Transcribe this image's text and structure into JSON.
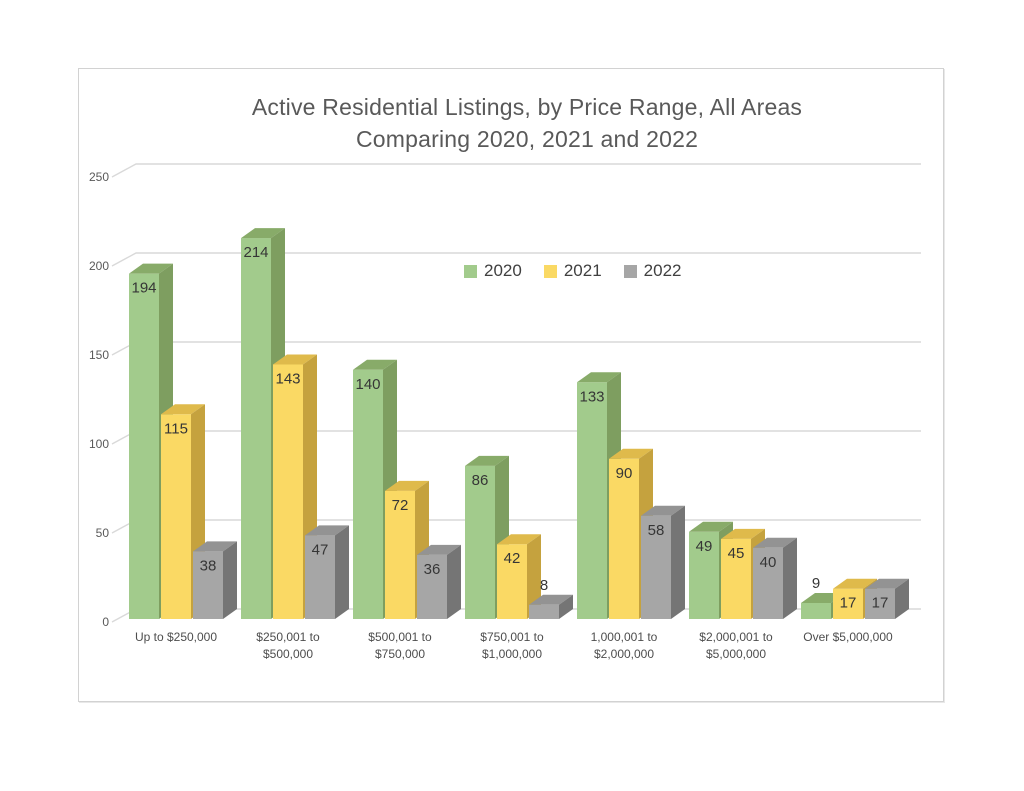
{
  "window": {
    "background": "#ffffff",
    "frame_border_color": "#d2d2d2"
  },
  "chart_data": {
    "type": "bar",
    "style": "3d-clustered-column",
    "title_lines": [
      "Active Residential Listings, by Price Range, All Areas",
      "Comparing 2020, 2021 and 2022"
    ],
    "categories": [
      [
        "Up to $250,000"
      ],
      [
        "$250,001 to",
        "$500,000"
      ],
      [
        "$500,001 to",
        "$750,000"
      ],
      [
        "$750,001 to",
        "$1,000,000"
      ],
      [
        "1,000,001 to",
        "$2,000,000"
      ],
      [
        "$2,000,001 to",
        "$5,000,000"
      ],
      [
        "Over $5,000,000"
      ]
    ],
    "series": [
      {
        "name": "2020",
        "values": [
          194,
          214,
          140,
          86,
          133,
          49,
          9
        ],
        "color_front": "#a2cb8c",
        "color_top": "#88ab69",
        "color_side": "#7e9e60"
      },
      {
        "name": "2021",
        "values": [
          115,
          143,
          72,
          42,
          90,
          45,
          17
        ],
        "color_front": "#fad964",
        "color_top": "#dfba4b",
        "color_side": "#c5a23e"
      },
      {
        "name": "2022",
        "values": [
          38,
          47,
          36,
          8,
          58,
          40,
          17
        ],
        "color_front": "#a6a6a6",
        "color_top": "#939393",
        "color_side": "#757575"
      }
    ],
    "y_axis": {
      "ticks": [
        0,
        50,
        100,
        150,
        200,
        250
      ],
      "min": 0,
      "max": 250
    },
    "gridlines": true,
    "grid_color": "#d9d9d9",
    "legend_position": "top-center",
    "value_label_color": "#363636",
    "axis_text_color": "#595959",
    "title_color": "#595959"
  }
}
